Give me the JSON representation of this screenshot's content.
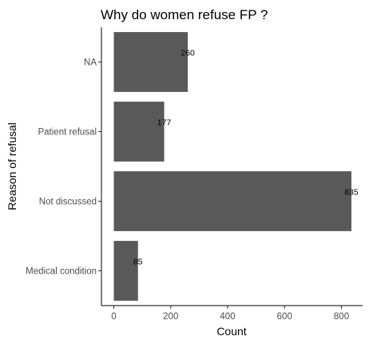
{
  "chart_data": {
    "type": "bar",
    "orientation": "horizontal",
    "title": "Why do women refuse FP ?",
    "xlabel": "Count",
    "ylabel": "Reason of refusal",
    "categories": [
      "NA",
      "Patient refusal",
      "Not discussed",
      "Medical condition"
    ],
    "values": [
      260,
      177,
      835,
      85
    ],
    "value_labels": [
      "260",
      "177",
      "835",
      "85"
    ],
    "xlim": [
      0,
      877
    ],
    "xticks": [
      0,
      200,
      400,
      600,
      800
    ],
    "xtick_labels": [
      "0",
      "200",
      "400",
      "600",
      "800"
    ],
    "grid": false,
    "legend": "none",
    "bar_color": "#595959"
  }
}
